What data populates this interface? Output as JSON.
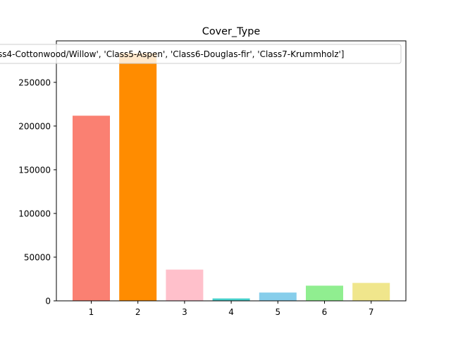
{
  "chart_data": {
    "type": "bar",
    "title": "Cover_Type",
    "legend_text": "ss4-Cottonwood/Willow', 'Class5-Aspen', 'Class6-Douglas-fir', 'Class7-Krummholz']",
    "legend_placement": "top",
    "xlabel": "",
    "ylabel": "",
    "categories": [
      "1",
      "2",
      "3",
      "4",
      "5",
      "6",
      "7"
    ],
    "values": [
      211840,
      283301,
      35754,
      2747,
      9493,
      17367,
      20510
    ],
    "colors": [
      "#fa8072",
      "#ff8c00",
      "#ffc0cb",
      "#48d1cc",
      "#87ceeb",
      "#90ee90",
      "#f0e68c"
    ],
    "ylim": [
      0,
      297466
    ],
    "yticks": [
      0,
      50000,
      100000,
      150000,
      200000,
      250000
    ],
    "ytick_labels": [
      "0",
      "50000",
      "100000",
      "150000",
      "200000",
      "250000"
    ],
    "grid": false
  }
}
